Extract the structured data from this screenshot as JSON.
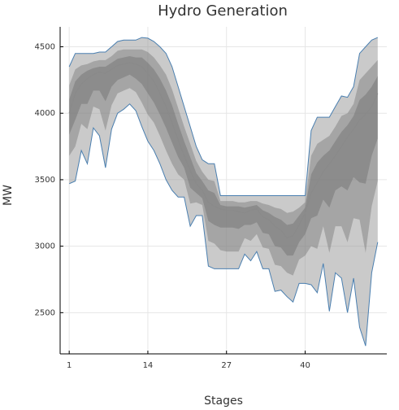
{
  "chart_data": {
    "type": "fan",
    "title": "Hydro Generation",
    "x_label": "Stages",
    "y_label": "MW",
    "x": [
      1,
      2,
      3,
      4,
      5,
      6,
      7,
      8,
      9,
      10,
      11,
      12,
      13,
      14,
      15,
      16,
      17,
      18,
      19,
      20,
      21,
      22,
      23,
      24,
      25,
      26,
      27,
      28,
      29,
      30,
      31,
      32,
      33,
      34,
      35,
      36,
      37,
      38,
      39,
      40,
      41,
      42,
      43,
      44,
      45,
      46,
      47,
      48,
      49,
      50,
      51,
      52
    ],
    "xlim": [
      -0.5,
      53.5
    ],
    "xticks": [
      1,
      14,
      27,
      40
    ],
    "ylim": [
      2190,
      4650
    ],
    "yticks": [
      2500,
      3000,
      3500,
      4000,
      4500
    ],
    "grid": true,
    "outline_color": "#4a7fb0",
    "bands": [
      {
        "color": "rgba(150,150,150,0.5)",
        "upper": [
          4350,
          4450,
          4450,
          4450,
          4450,
          4460,
          4460,
          4500,
          4540,
          4550,
          4550,
          4550,
          4570,
          4565,
          4540,
          4500,
          4450,
          4350,
          4200,
          4050,
          3900,
          3750,
          3650,
          3620,
          3620,
          3380,
          3380,
          3380,
          3380,
          3380,
          3380,
          3380,
          3380,
          3380,
          3380,
          3380,
          3380,
          3380,
          3380,
          3380,
          3870,
          3970,
          3970,
          3970,
          4050,
          4130,
          4120,
          4200,
          4450,
          4500,
          4550,
          4570
        ],
        "lower": [
          3470,
          3490,
          3720,
          3620,
          3890,
          3830,
          3590,
          3880,
          4000,
          4030,
          4070,
          4020,
          3900,
          3790,
          3720,
          3620,
          3500,
          3420,
          3370,
          3370,
          3150,
          3230,
          3230,
          2850,
          2830,
          2830,
          2830,
          2830,
          2830,
          2940,
          2890,
          2960,
          2830,
          2830,
          2660,
          2670,
          2620,
          2580,
          2720,
          2720,
          2710,
          2650,
          2870,
          2510,
          2800,
          2760,
          2500,
          2760,
          2390,
          2250,
          2800,
          3030
        ]
      },
      {
        "color": "rgba(120,120,120,0.45)",
        "upper": [
          4210,
          4330,
          4360,
          4370,
          4390,
          4400,
          4400,
          4430,
          4470,
          4480,
          4480,
          4480,
          4480,
          4460,
          4420,
          4360,
          4290,
          4180,
          4040,
          3900,
          3770,
          3640,
          3560,
          3500,
          3490,
          3340,
          3340,
          3340,
          3330,
          3330,
          3340,
          3340,
          3320,
          3310,
          3290,
          3280,
          3250,
          3260,
          3290,
          3330,
          3680,
          3770,
          3800,
          3830,
          3900,
          3980,
          4000,
          4070,
          4250,
          4300,
          4350,
          4400
        ],
        "lower": [
          3680,
          3750,
          3920,
          3880,
          4050,
          4030,
          3870,
          4060,
          4150,
          4170,
          4190,
          4160,
          4080,
          3990,
          3930,
          3830,
          3720,
          3620,
          3540,
          3500,
          3320,
          3330,
          3310,
          3040,
          3020,
          2970,
          2960,
          2960,
          2960,
          3060,
          3040,
          3090,
          2990,
          2980,
          2860,
          2850,
          2800,
          2780,
          2900,
          2930,
          3000,
          2980,
          3150,
          2950,
          3150,
          3150,
          3030,
          3210,
          3200,
          2950,
          3300,
          3490
        ]
      },
      {
        "color": "rgba(110,110,110,0.45)",
        "upper": [
          4105,
          4240,
          4290,
          4320,
          4340,
          4350,
          4350,
          4380,
          4410,
          4420,
          4430,
          4420,
          4420,
          4380,
          4330,
          4260,
          4170,
          4060,
          3920,
          3790,
          3670,
          3550,
          3490,
          3420,
          3400,
          3310,
          3300,
          3300,
          3300,
          3290,
          3300,
          3310,
          3270,
          3250,
          3220,
          3200,
          3160,
          3170,
          3230,
          3290,
          3540,
          3630,
          3680,
          3720,
          3790,
          3860,
          3910,
          3980,
          4100,
          4140,
          4200,
          4280
        ],
        "lower": [
          3840,
          3950,
          4070,
          4070,
          4170,
          4170,
          4090,
          4200,
          4250,
          4270,
          4290,
          4260,
          4220,
          4150,
          4080,
          3990,
          3890,
          3780,
          3670,
          3590,
          3440,
          3400,
          3360,
          3190,
          3160,
          3140,
          3140,
          3140,
          3130,
          3160,
          3160,
          3180,
          3100,
          3090,
          3000,
          2990,
          2930,
          2930,
          3030,
          3090,
          3210,
          3230,
          3350,
          3290,
          3420,
          3450,
          3420,
          3520,
          3480,
          3470,
          3680,
          3810
        ]
      }
    ],
    "median": {
      "color": "#8a8a8a",
      "values": [
        4000,
        4150,
        4220,
        4260,
        4290,
        4310,
        4300,
        4330,
        4360,
        4370,
        4380,
        4370,
        4350,
        4300,
        4240,
        4150,
        4050,
        3930,
        3800,
        3680,
        3570,
        3470,
        3420,
        3330,
        3300,
        3280,
        3270,
        3270,
        3260,
        3250,
        3270,
        3280,
        3220,
        3200,
        3150,
        3120,
        3060,
        3080,
        3160,
        3250,
        3400,
        3480,
        3560,
        3620,
        3680,
        3750,
        3820,
        3880,
        3950,
        3990,
        4050,
        4150
      ]
    }
  }
}
